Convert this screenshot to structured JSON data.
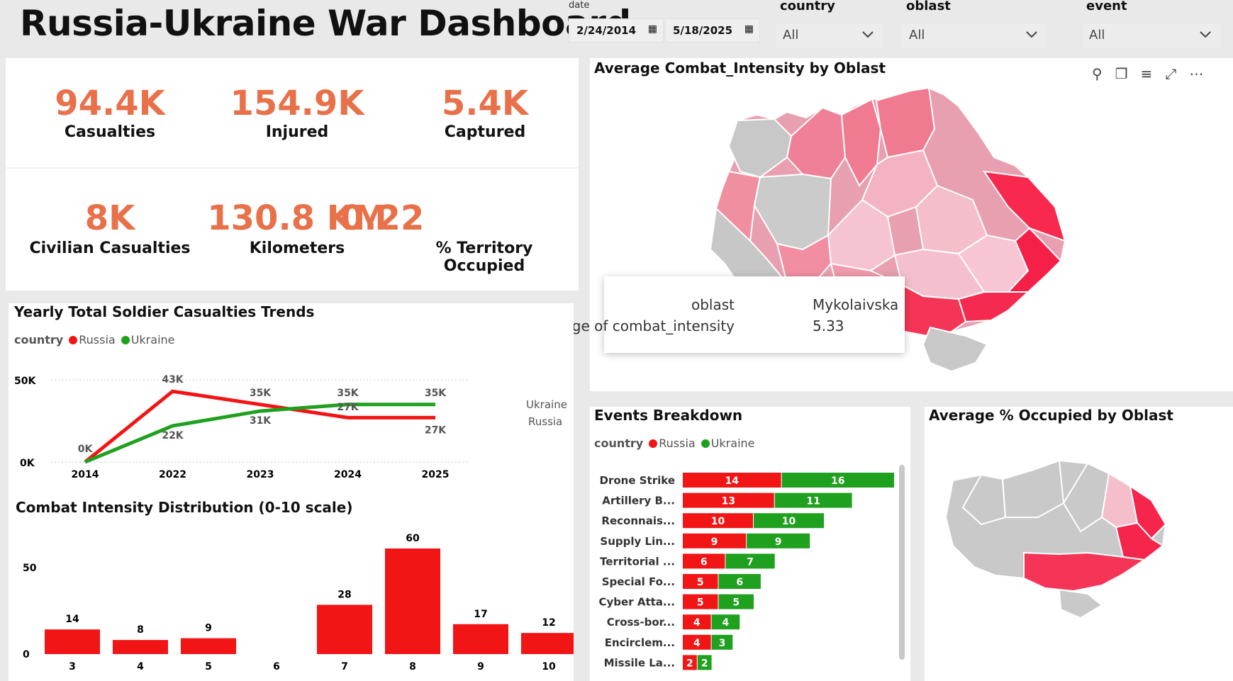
{
  "header": {
    "title": "Russia-Ukraine War Dashboard"
  },
  "filters": {
    "date_label": "date",
    "date_start": "2/24/2014",
    "date_end": "5/18/2025",
    "country_label": "country",
    "country_value": "All",
    "oblast_label": "oblast",
    "oblast_value": "All",
    "event_label": "event",
    "event_value": "All"
  },
  "kpis": [
    {
      "value": "94.4K",
      "label": "Casualties"
    },
    {
      "value": "154.9K",
      "label": "Injured"
    },
    {
      "value": "5.4K",
      "label": "Captured"
    },
    {
      "value": "8K",
      "label": "Civilian Casualties"
    },
    {
      "value": "130.8 KM",
      "label": "Kilometers"
    },
    {
      "value": "0.22",
      "label": "% Territory Occupied"
    }
  ],
  "map_intensity": {
    "title": "Average Combat_Intensity by Oblast",
    "tooltip": {
      "key1": "oblast",
      "val1": "Mykolaivska",
      "key2": "Average of combat_intensity",
      "val2": "5.33"
    }
  },
  "map_occupied": {
    "title": "Average % Occupied by Oblast"
  },
  "legend": {
    "label": "country",
    "russia": "Russia",
    "ukraine": "Ukraine"
  },
  "colors": {
    "russia": "#f21515",
    "ukraine": "#1fa01f",
    "kpi": "#e8714a"
  },
  "chart_data": [
    {
      "type": "line",
      "title": "Yearly Total Soldier Casualties Trends",
      "categories": [
        "2014",
        "2022",
        "2023",
        "2024",
        "2025"
      ],
      "series": [
        {
          "name": "Russia",
          "values": [
            0,
            43000,
            35000,
            27000,
            27000
          ],
          "labels": [
            "",
            "43K",
            "35K",
            "",
            "27K"
          ]
        },
        {
          "name": "Ukraine",
          "values": [
            0,
            22000,
            31000,
            35000,
            35000
          ],
          "labels": [
            "0K",
            "22K",
            "31K",
            "35K",
            "35K"
          ]
        }
      ],
      "extra_label": "27K",
      "yticks": [
        "0K",
        "50K"
      ],
      "ylim": [
        0,
        50000
      ],
      "end_labels": [
        "Ukraine",
        "Russia"
      ]
    },
    {
      "type": "bar",
      "title": "Combat Intensity Distribution (0-10 scale)",
      "categories": [
        "3",
        "4",
        "5",
        "6",
        "7",
        "8",
        "9",
        "10"
      ],
      "values": [
        14,
        8,
        9,
        0,
        28,
        60,
        17,
        12
      ],
      "yticks": [
        "0",
        "50"
      ],
      "ylim": [
        0,
        60
      ]
    },
    {
      "type": "bar",
      "title": "Events Breakdown",
      "orientation": "horizontal-stacked",
      "categories": [
        "Drone Strike",
        "Artillery B...",
        "Reconnais...",
        "Supply Lin...",
        "Territorial ...",
        "Special Fo...",
        "Cyber Atta...",
        "Cross-bor...",
        "Encirclem...",
        "Missile La..."
      ],
      "series": [
        {
          "name": "Russia",
          "values": [
            14,
            13,
            10,
            9,
            6,
            5,
            5,
            4,
            4,
            2
          ]
        },
        {
          "name": "Ukraine",
          "values": [
            16,
            11,
            10,
            9,
            7,
            6,
            5,
            4,
            3,
            2
          ]
        }
      ]
    }
  ]
}
